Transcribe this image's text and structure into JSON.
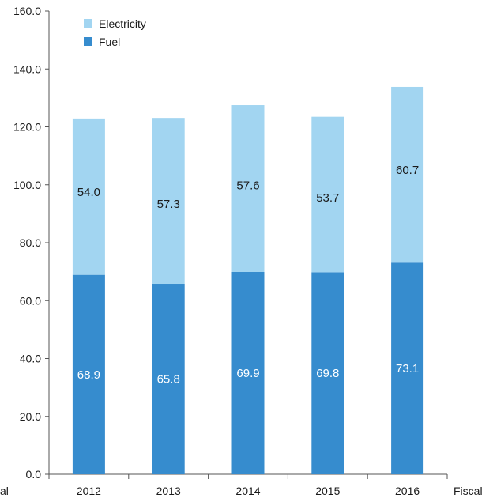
{
  "chart_data": {
    "type": "bar",
    "stacked": true,
    "categories": [
      "2012",
      "2013",
      "2014",
      "2015",
      "2016"
    ],
    "series": [
      {
        "name": "Fuel",
        "values": [
          68.9,
          65.8,
          69.9,
          69.8,
          73.1
        ],
        "color": "#368cce",
        "label_color": "#ffffff"
      },
      {
        "name": "Electricity",
        "values": [
          54.0,
          57.3,
          57.6,
          53.7,
          60.7
        ],
        "color": "#a2d5f1",
        "label_color": "#1a1a1a"
      }
    ],
    "ylim": [
      0,
      160
    ],
    "yticks": [
      "0.0",
      "20.0",
      "40.0",
      "60.0",
      "80.0",
      "100.0",
      "120.0",
      "140.0",
      "160.0"
    ],
    "xlabel": "Fiscal",
    "left_axis_fragment": "al",
    "legend": {
      "position": "top-left",
      "order": [
        "Electricity",
        "Fuel"
      ]
    },
    "grid": false
  }
}
